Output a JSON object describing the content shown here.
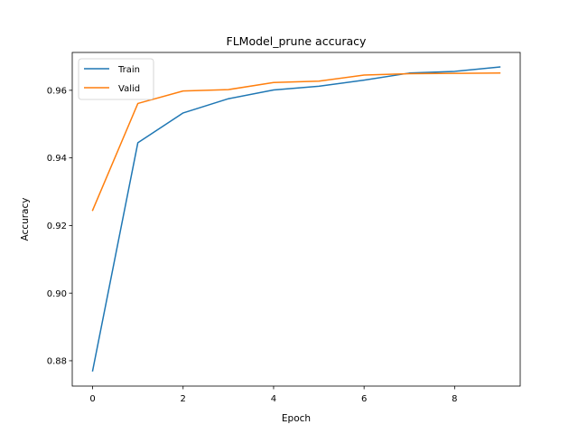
{
  "chart_data": {
    "type": "line",
    "title": "FLModel_prune accuracy",
    "xlabel": "Epoch",
    "ylabel": "Accuracy",
    "x": [
      0,
      1,
      2,
      3,
      4,
      5,
      6,
      7,
      8,
      9
    ],
    "xlim": [
      -0.45,
      9.45
    ],
    "ylim": [
      0.8725,
      0.9712
    ],
    "xticks": [
      0,
      2,
      4,
      6,
      8
    ],
    "yticks": [
      0.88,
      0.9,
      0.92,
      0.94,
      0.96
    ],
    "xtick_labels": [
      "0",
      "2",
      "4",
      "6",
      "8"
    ],
    "ytick_labels": [
      "0.88",
      "0.90",
      "0.92",
      "0.94",
      "0.96"
    ],
    "grid": false,
    "legend_position": "top-left",
    "series": [
      {
        "name": "Train",
        "color": "#1f77b4",
        "values": [
          0.877,
          0.9445,
          0.9533,
          0.9575,
          0.9601,
          0.9612,
          0.963,
          0.9651,
          0.9656,
          0.9669
        ]
      },
      {
        "name": "Valid",
        "color": "#ff7f0e",
        "values": [
          0.9245,
          0.9561,
          0.9598,
          0.9602,
          0.9623,
          0.9627,
          0.9645,
          0.9649,
          0.965,
          0.9651
        ]
      }
    ]
  }
}
